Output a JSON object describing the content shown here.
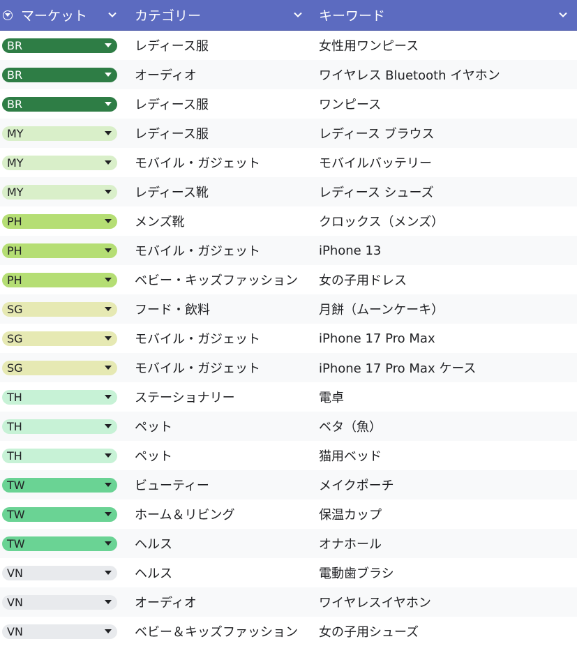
{
  "header": {
    "market_label": "マーケット",
    "category_label": "カテゴリー",
    "keyword_label": "キーワード",
    "header_bg": "#5c6bc0"
  },
  "market_colors": {
    "BR": {
      "bg": "#2e7d45",
      "fg": "#ffffff"
    },
    "MY": {
      "bg": "#d9efc9",
      "fg": "#202124"
    },
    "PH": {
      "bg": "#b5de74",
      "fg": "#202124"
    },
    "SG": {
      "bg": "#e6e9b3",
      "fg": "#202124"
    },
    "TH": {
      "bg": "#c7f2d6",
      "fg": "#202124"
    },
    "TW": {
      "bg": "#6ad394",
      "fg": "#202124"
    },
    "VN": {
      "bg": "#e8eaed",
      "fg": "#202124"
    }
  },
  "rows": [
    {
      "market": "BR",
      "category": "レディース服",
      "keyword": "女性用ワンピース"
    },
    {
      "market": "BR",
      "category": "オーディオ",
      "keyword": "ワイヤレス Bluetooth イヤホン"
    },
    {
      "market": "BR",
      "category": "レディース服",
      "keyword": "ワンピース"
    },
    {
      "market": "MY",
      "category": "レディース服",
      "keyword": "レディース ブラウス"
    },
    {
      "market": "MY",
      "category": "モバイル・ガジェット",
      "keyword": "モバイルバッテリー"
    },
    {
      "market": "MY",
      "category": "レディース靴",
      "keyword": "レディース シューズ"
    },
    {
      "market": "PH",
      "category": "メンズ靴",
      "keyword": "クロックス（メンズ）"
    },
    {
      "market": "PH",
      "category": "モバイル・ガジェット",
      "keyword": "iPhone 13"
    },
    {
      "market": "PH",
      "category": "ベビー・キッズファッション",
      "keyword": "女の子用ドレス"
    },
    {
      "market": "SG",
      "category": "フード・飲料",
      "keyword": "月餅（ムーンケーキ）"
    },
    {
      "market": "SG",
      "category": "モバイル・ガジェット",
      "keyword": "iPhone 17 Pro Max"
    },
    {
      "market": "SG",
      "category": "モバイル・ガジェット",
      "keyword": "iPhone 17 Pro Max ケース"
    },
    {
      "market": "TH",
      "category": "ステーショナリー",
      "keyword": "電卓"
    },
    {
      "market": "TH",
      "category": "ペット",
      "keyword": "ベタ（魚）"
    },
    {
      "market": "TH",
      "category": "ペット",
      "keyword": "猫用ベッド"
    },
    {
      "market": "TW",
      "category": "ビューティー",
      "keyword": "メイクポーチ"
    },
    {
      "market": "TW",
      "category": "ホーム＆リビング",
      "keyword": "保温カップ"
    },
    {
      "market": "TW",
      "category": "ヘルス",
      "keyword": "オナホール"
    },
    {
      "market": "VN",
      "category": "ヘルス",
      "keyword": "電動歯ブラシ"
    },
    {
      "market": "VN",
      "category": "オーディオ",
      "keyword": "ワイヤレスイヤホン"
    },
    {
      "market": "VN",
      "category": "ベビー＆キッズファッション",
      "keyword": "女の子用シューズ"
    }
  ]
}
